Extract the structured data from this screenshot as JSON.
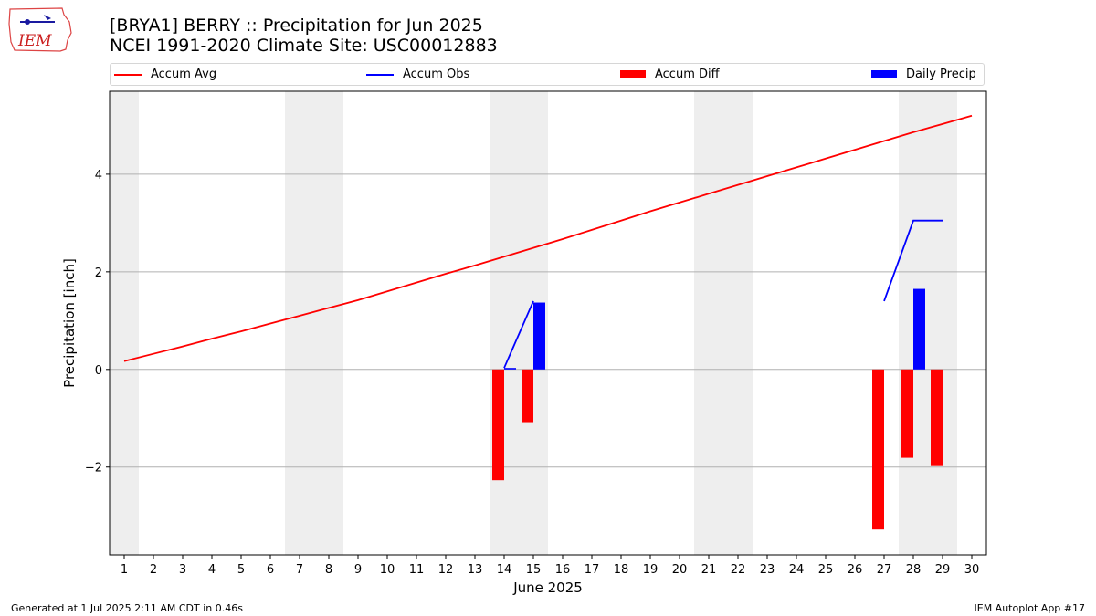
{
  "header": {
    "title_line1": "[BRYA1] BERRY :: Precipitation for Jun 2025",
    "title_line2": "NCEI 1991-2020 Climate Site: USC00012883"
  },
  "logo": {
    "text": "IEM"
  },
  "footer": {
    "generated": "Generated at 1 Jul 2025 2:11 AM CDT in 0.46s",
    "app": "IEM Autoplot App #17"
  },
  "colors": {
    "avg": "#ff0000",
    "obs": "#0000ff",
    "diff": "#ff0000",
    "daily": "#0000ff",
    "weekend": "#eeeeee",
    "grid": "#b0b0b0"
  },
  "chart_data": {
    "type": "bar",
    "xlabel": "June 2025",
    "ylabel": "Precipitation [inch]",
    "ylim": [
      -3.8,
      5.7
    ],
    "xlim": [
      0.5,
      30.5
    ],
    "yticks": [
      4,
      2,
      0,
      -2
    ],
    "ytick_labels": [
      "4",
      "2",
      "0",
      "−2"
    ],
    "xticks": [
      1,
      2,
      3,
      4,
      5,
      6,
      7,
      8,
      9,
      10,
      11,
      12,
      13,
      14,
      15,
      16,
      17,
      18,
      19,
      20,
      21,
      22,
      23,
      24,
      25,
      26,
      27,
      28,
      29,
      30
    ],
    "grid": "horizontal",
    "legend_position": "top",
    "weekend_days": [
      1,
      7,
      8,
      14,
      15,
      21,
      22,
      28,
      29
    ],
    "legend": [
      "Accum Avg",
      "Accum Obs",
      "Accum Diff",
      "Daily Precip"
    ],
    "series": [
      {
        "name": "Accum Avg",
        "kind": "line",
        "x": [
          1,
          2,
          3,
          4,
          5,
          6,
          7,
          8,
          9,
          10,
          11,
          12,
          13,
          14,
          15,
          16,
          17,
          18,
          19,
          20,
          21,
          22,
          23,
          24,
          25,
          26,
          27,
          28,
          29,
          30
        ],
        "values": [
          0.17,
          0.32,
          0.47,
          0.63,
          0.78,
          0.94,
          1.1,
          1.26,
          1.42,
          1.6,
          1.78,
          1.96,
          2.13,
          2.31,
          2.49,
          2.67,
          2.86,
          3.05,
          3.24,
          3.42,
          3.6,
          3.78,
          3.96,
          4.14,
          4.32,
          4.5,
          4.68,
          4.86,
          5.03,
          5.2
        ]
      },
      {
        "name": "Accum Obs",
        "kind": "line",
        "segments": [
          {
            "x": [
              14,
              15
            ],
            "values": [
              0.03,
              1.4
            ]
          },
          {
            "x": [
              27,
              28,
              29
            ],
            "values": [
              1.4,
              3.05,
              3.05
            ]
          }
        ]
      },
      {
        "name": "Accum Diff",
        "kind": "bar",
        "x": [
          14,
          15,
          27,
          28,
          29
        ],
        "values": [
          -2.27,
          -1.08,
          -3.28,
          -1.81,
          -1.98
        ]
      },
      {
        "name": "Daily Precip",
        "kind": "bar",
        "x": [
          14,
          15,
          28
        ],
        "values": [
          0.03,
          1.37,
          1.65
        ]
      }
    ]
  }
}
